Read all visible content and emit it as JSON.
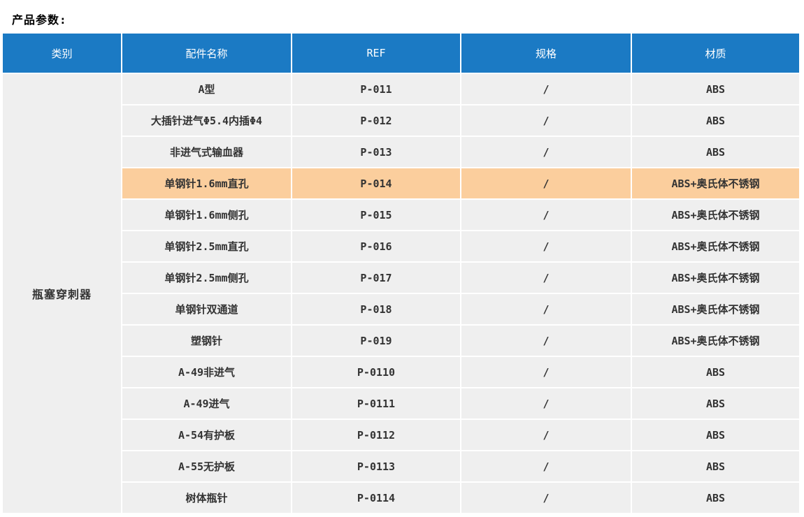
{
  "page_title": "产品参数:",
  "colors": {
    "header_bg": "#1b7ac4",
    "header_text": "#ffffff",
    "row_bg": "#efefef",
    "highlight_bg": "#fbce9d",
    "body_text": "#333333"
  },
  "table": {
    "columns": [
      "类别",
      "配件名称",
      "REF",
      "规格",
      "材质"
    ],
    "category": "瓶塞穿刺器",
    "rows": [
      {
        "name": "A型",
        "ref": "P-011",
        "spec": "/",
        "material": "ABS",
        "highlighted": false
      },
      {
        "name": "大插针进气Φ5.4内插Φ4",
        "ref": "P-012",
        "spec": "/",
        "material": "ABS",
        "highlighted": false
      },
      {
        "name": "非进气式输血器",
        "ref": "P-013",
        "spec": "/",
        "material": "ABS",
        "highlighted": false
      },
      {
        "name": "单钢针1.6mm直孔",
        "ref": "P-014",
        "spec": "/",
        "material": "ABS+奥氏体不锈钢",
        "highlighted": true
      },
      {
        "name": "单钢针1.6mm侧孔",
        "ref": "P-015",
        "spec": "/",
        "material": "ABS+奥氏体不锈钢",
        "highlighted": false
      },
      {
        "name": "单钢针2.5mm直孔",
        "ref": "P-016",
        "spec": "/",
        "material": "ABS+奥氏体不锈钢",
        "highlighted": false
      },
      {
        "name": "单钢针2.5mm侧孔",
        "ref": "P-017",
        "spec": "/",
        "material": "ABS+奥氏体不锈钢",
        "highlighted": false
      },
      {
        "name": "单钢针双通道",
        "ref": "P-018",
        "spec": "/",
        "material": "ABS+奥氏体不锈钢",
        "highlighted": false
      },
      {
        "name": "塑钢针",
        "ref": "P-019",
        "spec": "/",
        "material": "ABS+奥氏体不锈钢",
        "highlighted": false
      },
      {
        "name": "A-49非进气",
        "ref": "P-0110",
        "spec": "/",
        "material": "ABS",
        "highlighted": false
      },
      {
        "name": "A-49进气",
        "ref": "P-0111",
        "spec": "/",
        "material": "ABS",
        "highlighted": false
      },
      {
        "name": "A-54有护板",
        "ref": "P-0112",
        "spec": "/",
        "material": "ABS",
        "highlighted": false
      },
      {
        "name": "A-55无护板",
        "ref": "P-0113",
        "spec": "/",
        "material": "ABS",
        "highlighted": false
      },
      {
        "name": "树体瓶针",
        "ref": "P-0114",
        "spec": "/",
        "material": "ABS",
        "highlighted": false
      }
    ]
  }
}
